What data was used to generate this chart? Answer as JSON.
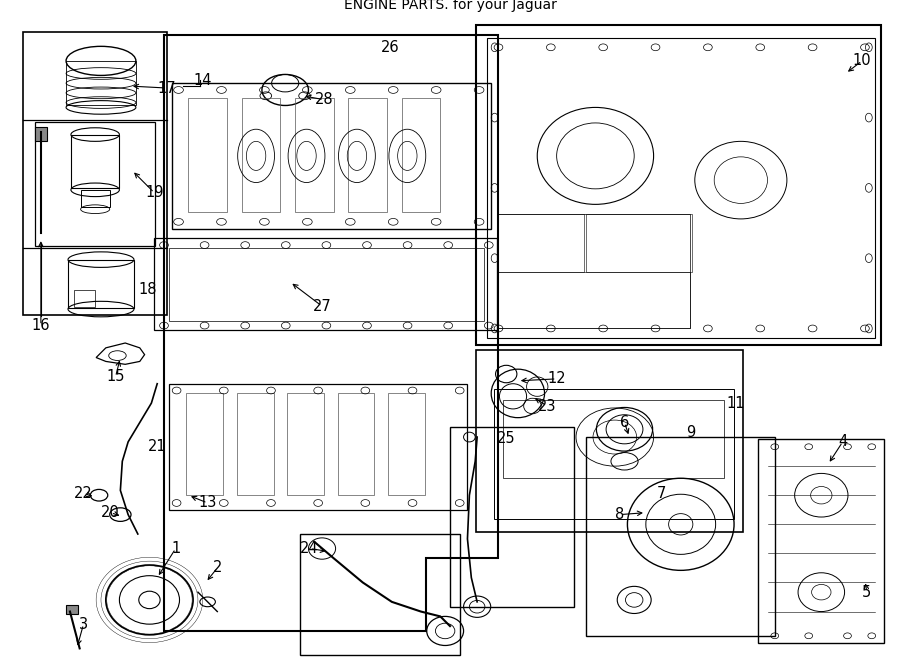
{
  "title": "ENGINE PARTS. for your Jaguar",
  "bg": "#ffffff",
  "lc": "#000000",
  "fig_w": 9.0,
  "fig_h": 6.61,
  "dpi": 100
}
